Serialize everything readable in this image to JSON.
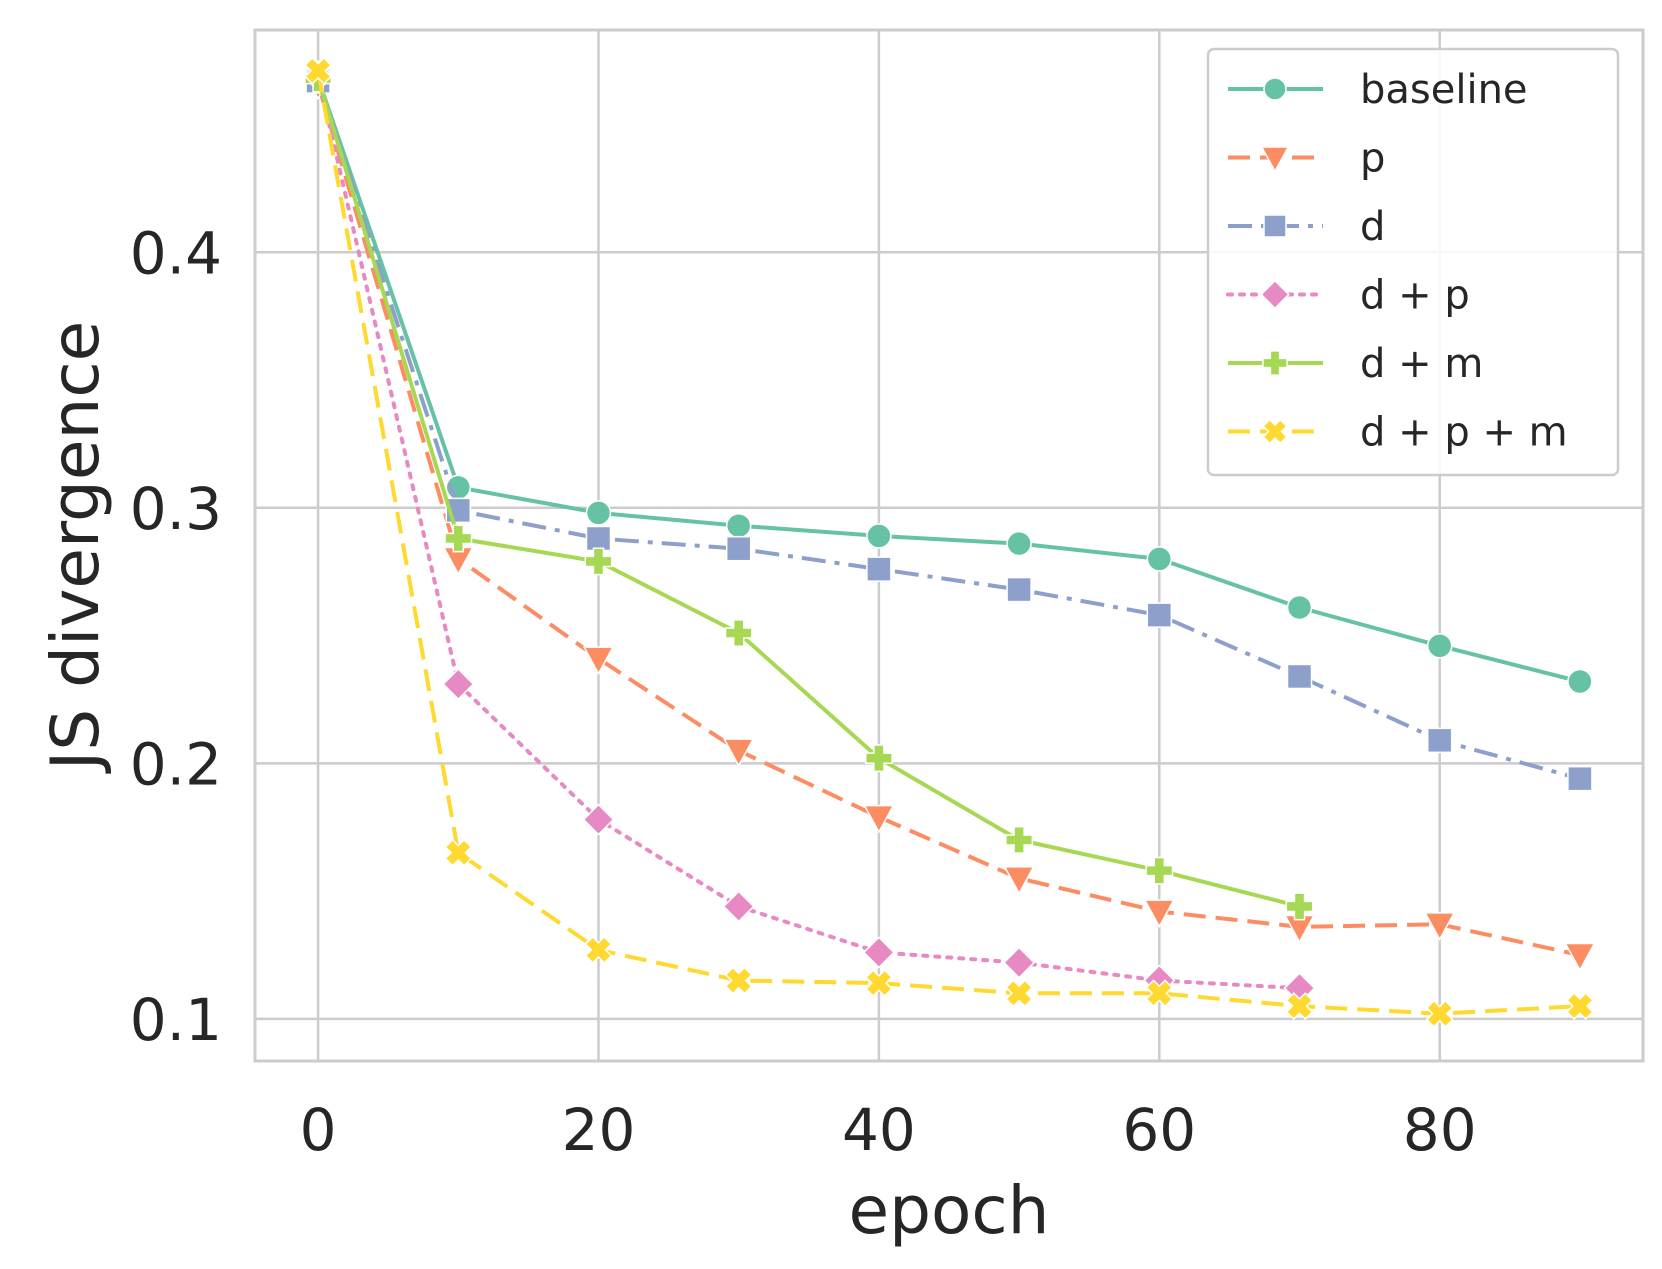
{
  "chart_data": {
    "type": "line",
    "title": "",
    "xlabel": "epoch",
    "ylabel": "JS divergence",
    "xlim": [
      -4.5,
      94.5
    ],
    "ylim": [
      0.0835,
      0.487
    ],
    "xticks": [
      0,
      20,
      40,
      60,
      80
    ],
    "yticks": [
      0.1,
      0.2,
      0.3,
      0.4
    ],
    "xtick_labels": [
      "0",
      "20",
      "40",
      "60",
      "80"
    ],
    "ytick_labels": [
      "0.1",
      "0.2",
      "0.3",
      "0.4"
    ],
    "grid": true,
    "legend_position": "top-right",
    "series": [
      {
        "name": "baseline",
        "color": "#66c2a5",
        "dash": "solid",
        "marker": "circle",
        "x": [
          0,
          10,
          20,
          30,
          40,
          50,
          60,
          70,
          80,
          90
        ],
        "y": [
          0.468,
          0.308,
          0.298,
          0.293,
          0.289,
          0.286,
          0.28,
          0.261,
          0.246,
          0.232
        ]
      },
      {
        "name": "p",
        "color": "#fc8d62",
        "dash": "dashed",
        "marker": "triangle-down",
        "x": [
          0,
          10,
          20,
          30,
          40,
          50,
          60,
          70,
          80,
          90
        ],
        "y": [
          0.466,
          0.28,
          0.241,
          0.205,
          0.179,
          0.155,
          0.142,
          0.136,
          0.137,
          0.125
        ]
      },
      {
        "name": "d",
        "color": "#8da0cb",
        "dash": "dashdot",
        "marker": "square",
        "x": [
          0,
          10,
          20,
          30,
          40,
          50,
          60,
          70,
          80,
          90
        ],
        "y": [
          0.467,
          0.299,
          0.288,
          0.284,
          0.276,
          0.268,
          0.258,
          0.234,
          0.209,
          0.194
        ]
      },
      {
        "name": "d + p",
        "color": "#e78ac3",
        "dash": "dotted",
        "marker": "diamond",
        "x": [
          0,
          10,
          20,
          30,
          40,
          50,
          60,
          70
        ],
        "y": [
          0.469,
          0.231,
          0.178,
          0.144,
          0.126,
          0.122,
          0.115,
          0.112
        ]
      },
      {
        "name": "d + m",
        "color": "#a6d854",
        "dash": "solid",
        "marker": "plus",
        "x": [
          0,
          10,
          20,
          30,
          40,
          50,
          60,
          70
        ],
        "y": [
          0.468,
          0.288,
          0.279,
          0.251,
          0.202,
          0.17,
          0.158,
          0.144
        ]
      },
      {
        "name": "d + p + m",
        "color": "#ffd92f",
        "dash": "dashed",
        "marker": "x",
        "x": [
          0,
          10,
          20,
          30,
          40,
          50,
          60,
          70,
          80,
          90
        ],
        "y": [
          0.471,
          0.165,
          0.127,
          0.115,
          0.114,
          0.11,
          0.11,
          0.105,
          0.102,
          0.105
        ]
      }
    ]
  }
}
